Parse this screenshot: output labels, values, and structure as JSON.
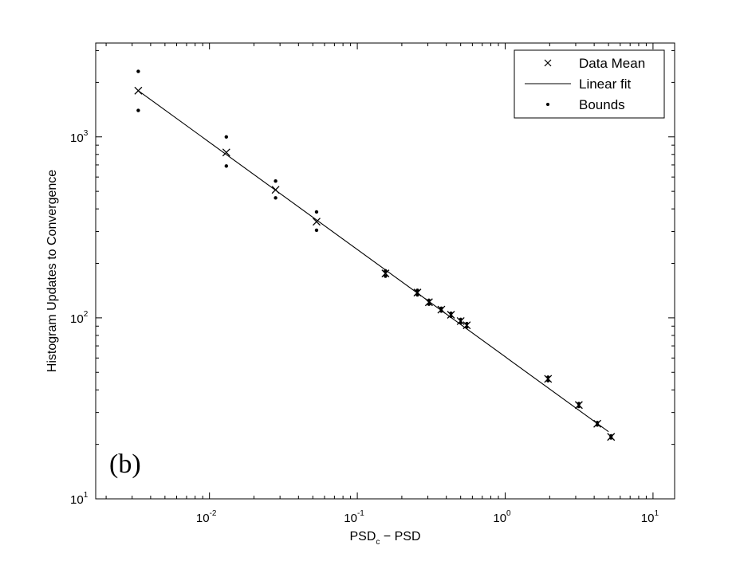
{
  "chart_data": {
    "type": "scatter",
    "xlabel": "PSD",
    "xlabel_sub": "c",
    "xlabel_rest": " − PSD",
    "ylabel": "Histogram Updates to Convergence",
    "xscale": "log",
    "yscale": "log",
    "xlim": [
      0.0017,
      14
    ],
    "ylim": [
      10,
      3300
    ],
    "x_ticks": [
      {
        "base": "10",
        "exp": "-2",
        "value": 0.01
      },
      {
        "base": "10",
        "exp": "-1",
        "value": 0.1
      },
      {
        "base": "10",
        "exp": "0",
        "value": 1
      },
      {
        "base": "10",
        "exp": "1",
        "value": 10
      }
    ],
    "y_ticks": [
      {
        "base": "10",
        "exp": "1",
        "value": 10
      },
      {
        "base": "10",
        "exp": "2",
        "value": 100
      },
      {
        "base": "10",
        "exp": "3",
        "value": 1000
      }
    ],
    "panel_label": "(b)",
    "legend": {
      "position": "top-right",
      "entries": [
        {
          "label": "Data Mean",
          "marker": "x"
        },
        {
          "label": "Linear fit",
          "marker": "line"
        },
        {
          "label": "Bounds",
          "marker": "dot"
        }
      ]
    },
    "series": [
      {
        "name": "Data Mean",
        "marker": "x",
        "points": [
          [
            0.0033,
            1800
          ],
          [
            0.013,
            820
          ],
          [
            0.028,
            510
          ],
          [
            0.053,
            340
          ],
          [
            0.155,
            176
          ],
          [
            0.255,
            138
          ],
          [
            0.305,
            122
          ],
          [
            0.37,
            111
          ],
          [
            0.43,
            104
          ],
          [
            0.5,
            96
          ],
          [
            0.55,
            91
          ],
          [
            1.95,
            46
          ],
          [
            3.15,
            33
          ],
          [
            4.2,
            26
          ],
          [
            5.2,
            22
          ]
        ]
      },
      {
        "name": "Linear fit",
        "marker": "line",
        "points": [
          [
            0.0033,
            1800
          ],
          [
            5.0,
            23.5
          ]
        ]
      },
      {
        "name": "Bounds",
        "marker": "dot",
        "points": [
          [
            0.0033,
            2300
          ],
          [
            0.0033,
            1400
          ],
          [
            0.013,
            1000
          ],
          [
            0.013,
            690
          ],
          [
            0.028,
            570
          ],
          [
            0.028,
            460
          ],
          [
            0.053,
            385
          ],
          [
            0.053,
            305
          ],
          [
            0.155,
            182
          ],
          [
            0.155,
            170
          ],
          [
            0.255,
            142
          ],
          [
            0.255,
            134
          ],
          [
            0.305,
            125
          ],
          [
            0.305,
            119
          ],
          [
            0.37,
            113
          ],
          [
            0.37,
            109
          ],
          [
            0.43,
            106
          ],
          [
            0.43,
            102
          ],
          [
            0.5,
            98
          ],
          [
            0.5,
            94
          ],
          [
            0.55,
            93
          ],
          [
            0.55,
            89
          ],
          [
            1.95,
            47
          ],
          [
            1.95,
            45
          ],
          [
            3.15,
            33.6
          ],
          [
            3.15,
            32.4
          ],
          [
            4.2,
            26.4
          ],
          [
            4.2,
            25.6
          ],
          [
            5.2,
            22.3
          ],
          [
            5.2,
            21.7
          ]
        ]
      }
    ]
  }
}
